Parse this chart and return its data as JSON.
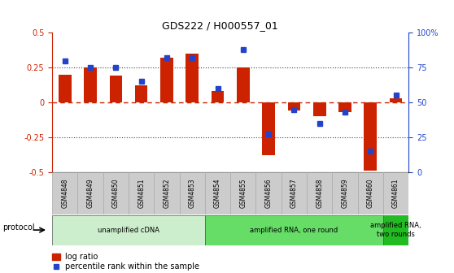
{
  "title": "GDS222 / H000557_01",
  "categories": [
    "GSM4848",
    "GSM4849",
    "GSM4850",
    "GSM4851",
    "GSM4852",
    "GSM4853",
    "GSM4854",
    "GSM4855",
    "GSM4856",
    "GSM4857",
    "GSM4858",
    "GSM4859",
    "GSM4860",
    "GSM4861"
  ],
  "log_ratio": [
    0.2,
    0.25,
    0.19,
    0.12,
    0.32,
    0.35,
    0.08,
    0.25,
    -0.38,
    -0.06,
    -0.1,
    -0.07,
    -0.49,
    0.03
  ],
  "percentile": [
    80,
    75,
    75,
    65,
    82,
    82,
    60,
    88,
    27,
    45,
    35,
    43,
    15,
    55
  ],
  "bar_color": "#cc2200",
  "dot_color": "#2244cc",
  "ylim": [
    -0.5,
    0.5
  ],
  "yticks_left": [
    -0.5,
    -0.25,
    0.0,
    0.25,
    0.5
  ],
  "ytick_labels_left": [
    "-0.5",
    "-0.25",
    "0",
    "0.25",
    "0.5"
  ],
  "yticks_right": [
    0,
    25,
    50,
    75,
    100
  ],
  "ytick_labels_right": [
    "0",
    "25",
    "50",
    "75",
    "100%"
  ],
  "hlines_dotted": [
    0.25,
    -0.25
  ],
  "hline_zero_color": "#cc2200",
  "hline_dotted_color": "#444444",
  "protocol_groups": [
    {
      "label": "unamplified cDNA",
      "start": 0,
      "end": 5,
      "color": "#cceecc"
    },
    {
      "label": "amplified RNA, one round",
      "start": 6,
      "end": 12,
      "color": "#66dd66"
    },
    {
      "label": "amplified RNA,\ntwo rounds",
      "start": 13,
      "end": 13,
      "color": "#22bb22"
    }
  ],
  "legend_log_ratio": "log ratio",
  "legend_percentile": "percentile rank within the sample",
  "protocol_label": "protocol",
  "background_color": "#ffffff",
  "xtick_bg": "#cccccc"
}
